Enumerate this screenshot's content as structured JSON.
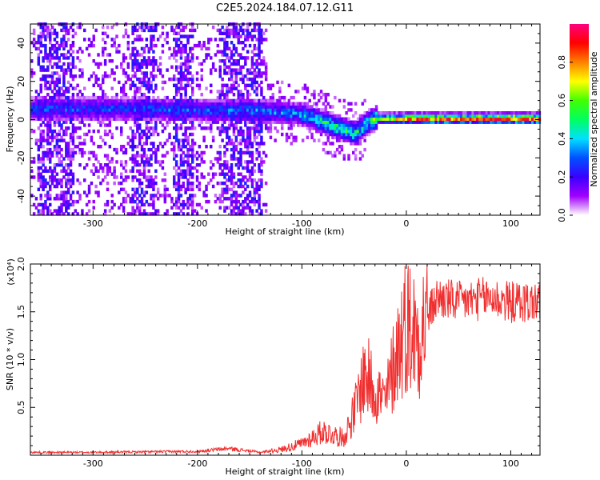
{
  "title": "C2E5.2024.184.07.12.G11",
  "chart_data": [
    {
      "type": "heatmap",
      "xlabel": "Height of straight line (km)",
      "ylabel": "Frequency (Hz)",
      "xlim": [
        -360,
        128
      ],
      "ylim": [
        -50,
        50
      ],
      "xticks": [
        -300,
        -200,
        -100,
        0,
        100
      ],
      "yticks": [
        -40,
        -20,
        0,
        20,
        40
      ],
      "colorbar": {
        "label": "Normalized spectral amplitude",
        "range": [
          0,
          1
        ],
        "ticks": [
          "0.0",
          "0.2",
          "0.4",
          "0.6",
          "0.8"
        ],
        "tick_values": [
          0,
          0.2,
          0.4,
          0.6,
          0.8
        ],
        "colormap": [
          "#ffffff",
          "#a000ff",
          "#3a00ff",
          "#0050ff",
          "#00e0ff",
          "#00ff60",
          "#40ff00",
          "#ffff00",
          "#ff8000",
          "#ff0000",
          "#ff0080"
        ]
      },
      "signal_track": [
        {
          "x": -300,
          "freq": 5,
          "amp": 0.3
        },
        {
          "x": -250,
          "freq": 5,
          "amp": 0.3
        },
        {
          "x": -200,
          "freq": 4,
          "amp": 0.3
        },
        {
          "x": -150,
          "freq": 4,
          "amp": 0.35
        },
        {
          "x": -120,
          "freq": 3,
          "amp": 0.35
        },
        {
          "x": -100,
          "freq": 2,
          "amp": 0.4
        },
        {
          "x": -80,
          "freq": -2,
          "amp": 0.5
        },
        {
          "x": -60,
          "freq": -6,
          "amp": 0.55
        },
        {
          "x": -50,
          "freq": -8,
          "amp": 0.5
        },
        {
          "x": -40,
          "freq": -3,
          "amp": 0.5
        },
        {
          "x": -30,
          "freq": 0,
          "amp": 0.6
        },
        {
          "x": -10,
          "freq": 0,
          "amp": 0.7
        },
        {
          "x": 0,
          "freq": 0,
          "amp": 0.8
        },
        {
          "x": 50,
          "freq": 0,
          "amp": 0.85
        },
        {
          "x": 100,
          "freq": 0,
          "amp": 0.85
        },
        {
          "x": 128,
          "freq": 0,
          "amp": 0.85
        }
      ],
      "noise_region": [
        -360,
        -135
      ]
    },
    {
      "type": "line",
      "xlabel": "Height of straight line (km)",
      "ylabel": "SNR (10 * v/v)",
      "y_multiplier": "(x10⁴)",
      "xlim": [
        -360,
        128
      ],
      "ylim": [
        0,
        20000
      ],
      "xticks": [
        -300,
        -200,
        -100,
        0,
        100
      ],
      "yticks": [
        5000,
        10000,
        15000,
        20000
      ],
      "ytick_labels": [
        "0.5",
        "1.0",
        "1.5",
        "2.0"
      ],
      "color": "#f03030",
      "series": [
        {
          "x": [
            -360,
            -300,
            -250,
            -200,
            -170,
            -140,
            -120,
            -100,
            -80,
            -60,
            -50,
            -40,
            -30,
            -20,
            -10,
            0,
            10,
            20,
            30,
            50,
            80,
            100,
            128
          ],
          "y": [
            300,
            300,
            350,
            400,
            700,
            300,
            600,
            1200,
            2500,
            1800,
            4500,
            8500,
            7000,
            5500,
            10500,
            14000,
            12500,
            14500,
            16500,
            16000,
            16500,
            16000,
            16000
          ]
        }
      ]
    }
  ]
}
